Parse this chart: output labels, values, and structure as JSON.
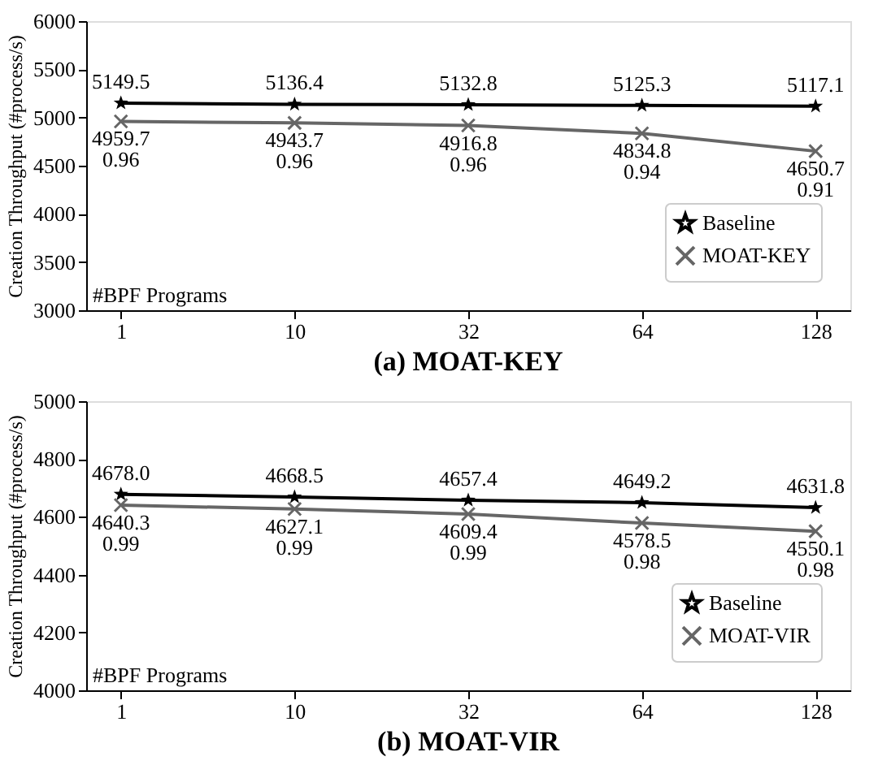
{
  "chart_data": [
    {
      "type": "line",
      "title": "(a) MOAT-KEY",
      "xlabel": "#BPF Programs",
      "ylabel": "Creation Throughput (#process/s)",
      "categories": [
        "1",
        "10",
        "32",
        "64",
        "128"
      ],
      "ylim": [
        3000,
        6000
      ],
      "yticks": [
        3000,
        3500,
        4000,
        4500,
        5000,
        5500,
        6000
      ],
      "grid": false,
      "legend": "bottom right",
      "line_style": "solid",
      "series": [
        {
          "name": "Baseline",
          "color": "#000000",
          "marker": "star",
          "values": [
            5149.5,
            5136.4,
            5132.8,
            5125.3,
            5117.1
          ],
          "value_labels": [
            "5149.5",
            "5136.4",
            "5132.8",
            "5125.3",
            "5117.1"
          ]
        },
        {
          "name": "MOAT-KEY",
          "color": "#666666",
          "marker": "cross",
          "values": [
            4959.7,
            4943.7,
            4916.8,
            4834.8,
            4650.7
          ],
          "value_labels": [
            "4959.7\n0.96",
            "4943.7\n0.96",
            "4916.8\n0.96",
            "4834.8\n0.94",
            "4650.7\n0.91"
          ]
        }
      ]
    },
    {
      "type": "line",
      "title": "(b) MOAT-VIR",
      "xlabel": "#BPF Programs",
      "ylabel": "Creation Throughput (#process/s)",
      "categories": [
        "1",
        "10",
        "32",
        "64",
        "128"
      ],
      "ylim": [
        4000,
        5000
      ],
      "yticks": [
        4000,
        4200,
        4400,
        4600,
        4800,
        5000
      ],
      "grid": false,
      "legend": "bottom right",
      "line_style": "solid",
      "series": [
        {
          "name": "Baseline",
          "color": "#000000",
          "marker": "star",
          "values": [
            4678.0,
            4668.5,
            4657.4,
            4649.2,
            4631.8
          ],
          "value_labels": [
            "4678.0",
            "4668.5",
            "4657.4",
            "4649.2",
            "4631.8"
          ]
        },
        {
          "name": "MOAT-VIR",
          "color": "#666666",
          "marker": "cross",
          "values": [
            4640.3,
            4627.1,
            4609.4,
            4578.5,
            4550.1
          ],
          "value_labels": [
            "4640.3\n0.99",
            "4627.1\n0.99",
            "4609.4\n0.99",
            "4578.5\n0.98",
            "4550.1\n0.98"
          ]
        }
      ]
    }
  ]
}
